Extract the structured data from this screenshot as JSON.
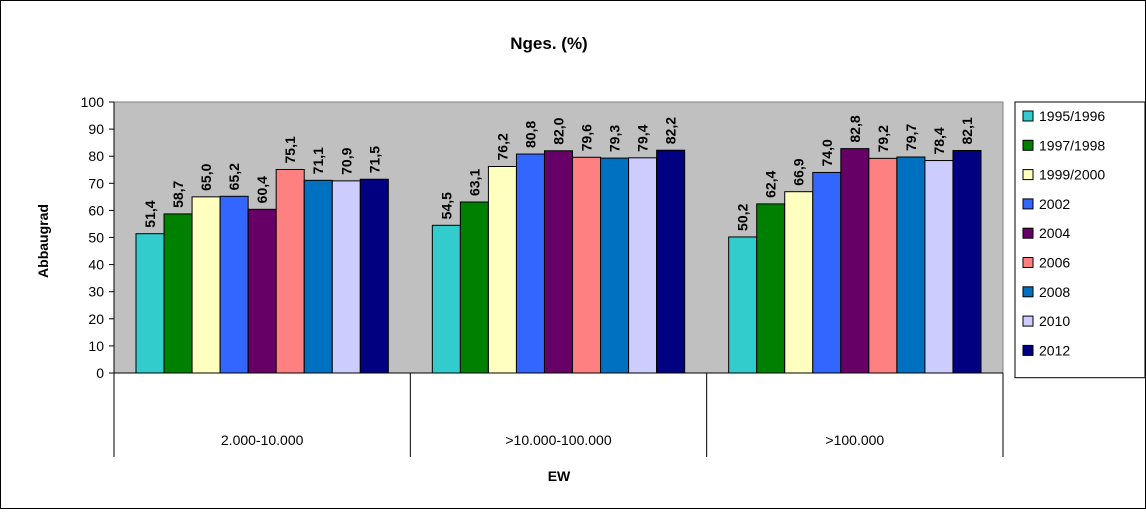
{
  "chart_data": {
    "type": "bar",
    "title": "Nges. (%)",
    "xlabel": "EW",
    "ylabel": "Abbaugrad",
    "categories": [
      "2.000-10.000",
      ">10.000-100.000",
      ">100.000"
    ],
    "ylim": [
      0,
      100
    ],
    "yticks": [
      "0",
      "10",
      "20",
      "30",
      "40",
      "50",
      "60",
      "70",
      "80",
      "90",
      "100"
    ],
    "grid": false,
    "legend_position": "right",
    "series": [
      {
        "name": "1995/1996",
        "color": "#33CCCC",
        "values": [
          51.4,
          54.5,
          50.2
        ],
        "labels": [
          "51,4",
          "54,5",
          "50,2"
        ]
      },
      {
        "name": "1997/1998",
        "color": "#008000",
        "values": [
          58.7,
          63.1,
          62.4
        ],
        "labels": [
          "58,7",
          "63,1",
          "62,4"
        ]
      },
      {
        "name": "1999/2000",
        "color": "#FFFFC0",
        "values": [
          65.0,
          76.2,
          66.9
        ],
        "labels": [
          "65,0",
          "76,2",
          "66,9"
        ]
      },
      {
        "name": "2002",
        "color": "#3366FF",
        "values": [
          65.2,
          80.8,
          74.0
        ],
        "labels": [
          "65,2",
          "80,8",
          "74,0"
        ]
      },
      {
        "name": "2004",
        "color": "#660066",
        "values": [
          60.4,
          82.0,
          82.8
        ],
        "labels": [
          "60,4",
          "82,0",
          "82,8"
        ]
      },
      {
        "name": "2006",
        "color": "#FF8080",
        "values": [
          75.1,
          79.6,
          79.2
        ],
        "labels": [
          "75,1",
          "79,6",
          "79,2"
        ]
      },
      {
        "name": "2008",
        "color": "#0070C0",
        "values": [
          71.1,
          79.3,
          79.7
        ],
        "labels": [
          "71,1",
          "79,3",
          "79,7"
        ]
      },
      {
        "name": "2010",
        "color": "#CCCCFF",
        "values": [
          70.9,
          79.4,
          78.4
        ],
        "labels": [
          "70,9",
          "79,4",
          "78,4"
        ]
      },
      {
        "name": "2012",
        "color": "#000080",
        "values": [
          71.5,
          82.2,
          82.1
        ],
        "labels": [
          "71,5",
          "82,2",
          "82,1"
        ]
      }
    ],
    "plot_background": "#C0C0C0"
  }
}
